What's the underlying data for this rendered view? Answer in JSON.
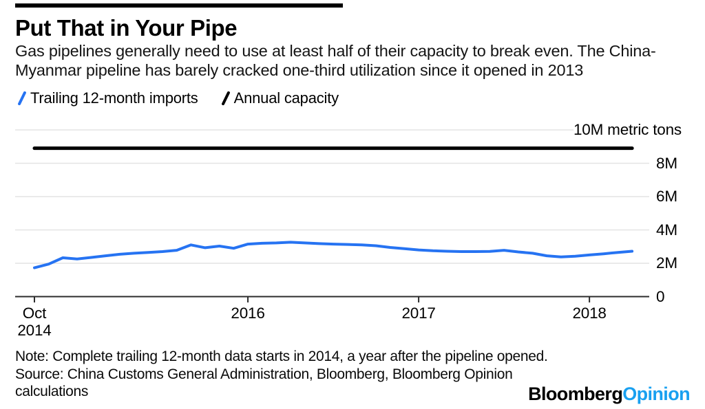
{
  "page": {
    "background": "#ffffff"
  },
  "header": {
    "title": "Put That in Your Pipe",
    "subtitle_lines": [
      "Gas pipelines generally need to use at least half of their capacity to break even. The China-",
      "Myanmar pipeline has barely cracked one-third utilization since it opened in 2013"
    ]
  },
  "legend": {
    "items": [
      {
        "label": "Trailing 12-month imports",
        "color": "#2673f2"
      },
      {
        "label": "Annual capacity",
        "color": "#000000"
      }
    ]
  },
  "chart_data": {
    "type": "line",
    "title": "Put That in Your Pipe",
    "unit_label": "10M metric tons",
    "ylabel": "",
    "xlabel": "",
    "ylim": [
      0,
      10
    ],
    "grid_values": [
      2,
      4,
      6,
      8,
      10
    ],
    "yticks": [
      {
        "value": 8,
        "label": "8M"
      },
      {
        "value": 6,
        "label": "6M"
      },
      {
        "value": 4,
        "label": "4M"
      },
      {
        "value": 2,
        "label": "2M"
      },
      {
        "value": 0,
        "label": "0"
      }
    ],
    "xticks": [
      {
        "month": 0,
        "label": "Oct",
        "sublabel": "2014"
      },
      {
        "month": 15,
        "label": "2016",
        "sublabel": ""
      },
      {
        "month": 27,
        "label": "2017",
        "sublabel": ""
      },
      {
        "month": 39,
        "label": "2018",
        "sublabel": ""
      }
    ],
    "series": [
      {
        "name": "Trailing 12-month imports",
        "kind": "line",
        "color": "#2673f2",
        "start": "Oct 2014",
        "end": "Apr 2018",
        "unit": "million metric tons",
        "values": [
          1.73,
          1.95,
          2.33,
          2.26,
          2.35,
          2.45,
          2.54,
          2.6,
          2.65,
          2.7,
          2.78,
          3.1,
          2.93,
          3.03,
          2.9,
          3.15,
          3.2,
          3.22,
          3.26,
          3.22,
          3.18,
          3.15,
          3.13,
          3.1,
          3.05,
          2.95,
          2.88,
          2.8,
          2.75,
          2.72,
          2.7,
          2.7,
          2.71,
          2.78,
          2.68,
          2.6,
          2.45,
          2.38,
          2.42,
          2.5,
          2.57,
          2.65,
          2.72
        ]
      },
      {
        "name": "Annual capacity",
        "kind": "constant-line",
        "color": "#000000",
        "value": 8.9
      }
    ],
    "colors": {
      "grid": "#e4e4e4",
      "axis": "#2b2b2b"
    },
    "legend_position": "top-left",
    "grid": "horizontal-only"
  },
  "footer": {
    "note_lines": [
      "Note: Complete trailing 12-month data starts in 2014, a year after the pipeline opened.",
      "Source: China Customs General Administration, Bloomberg, Bloomberg Opinion",
      "calculations"
    ],
    "logo": {
      "part1": "Bloomberg",
      "part2": "Opinion",
      "part2_color": "#19a0f0"
    }
  }
}
